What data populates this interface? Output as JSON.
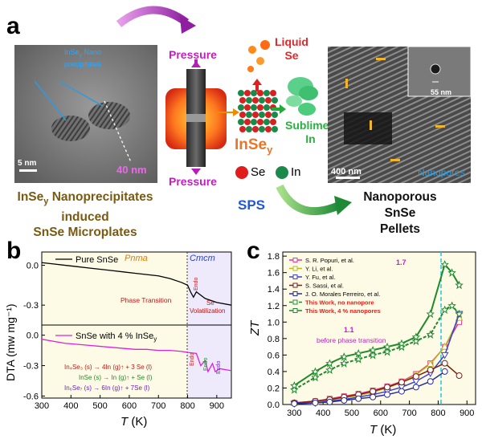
{
  "panel_a": {
    "label": "a",
    "tem": {
      "precip_label_line1": "InSe",
      "precip_label_sub": "y",
      "precip_label_rest": " Nano",
      "precip_label_line2": "precipitates",
      "scale_bar": "5 nm",
      "length_label": "40 nm"
    },
    "caption_left_line1a": "InSe",
    "caption_left_line1sub": "y",
    "caption_left_line1b": " Nanoprecipitates",
    "caption_left_line2": "induced",
    "caption_left_line3": "SnSe Microplates",
    "pressure_top": "Pressure",
    "pressure_bottom": "Pressure",
    "liquid_line1": "Liquid",
    "liquid_line2": "Se",
    "sublimed_line1": "Sublimed",
    "sublimed_line2": "In",
    "inse_main": "InSe",
    "inse_sub": "y",
    "legend_se": "Se",
    "legend_in": "In",
    "sps": "SPS",
    "sem": {
      "scale_bar": "400 nm",
      "inset_scale": "55 nm",
      "nanopores": "Nanopores"
    },
    "caption_right_line1": "Nanoporous",
    "caption_right_line2": "SnSe",
    "caption_right_line3": "Pellets"
  },
  "panel_b": {
    "label": "b",
    "phase_pnma": "Pnma",
    "phase_cmcm": "Cmcm",
    "phase_transition": "Phase Transition",
    "endo": "Endo",
    "se_vol_line1": "Se",
    "se_vol_line2": "Volatilization",
    "legend_top": "Pure SnSe",
    "legend_bottom_a": "SnSe with 4 % InSe",
    "legend_bottom_sub": "y",
    "reaction1": "In₄Se₃ (s) → 4In (g)↑ + 3 Se (l)",
    "reaction2": "InSe (s) → In (g)↑ + Se (l)",
    "reaction3": "In₆Se₇ (s) → 6In (g)↑ + 7Se (l)",
    "chart_data": {
      "type": "line",
      "xlabel": "T (K)",
      "ylabel": "DTA (mw mg⁻¹)",
      "xlim": [
        300,
        950
      ],
      "xticks": [
        "300",
        "400",
        "500",
        "600",
        "700",
        "800",
        "900"
      ],
      "top_yticks": [
        "0.0",
        "-0.3"
      ],
      "bottom_yticks": [
        "0.0",
        "-0.3",
        "-0.6"
      ],
      "series": [
        {
          "name": "Pure SnSe",
          "x": [
            300,
            340,
            380,
            420,
            460,
            500,
            540,
            580,
            620,
            660,
            700,
            740,
            780,
            800,
            810,
            820,
            830,
            860,
            900,
            950
          ],
          "y": [
            0.02,
            0.01,
            0.0,
            -0.01,
            -0.02,
            -0.03,
            -0.04,
            -0.05,
            -0.06,
            -0.07,
            -0.08,
            -0.1,
            -0.13,
            -0.15,
            -0.2,
            -0.24,
            -0.2,
            -0.25,
            -0.28,
            -0.3
          ]
        },
        {
          "name": "SnSe with 4 % InSe_y",
          "x": [
            300,
            340,
            380,
            420,
            460,
            500,
            540,
            580,
            620,
            660,
            700,
            740,
            780,
            800,
            830,
            845,
            860,
            870,
            885,
            895,
            910,
            950
          ],
          "y": [
            -0.04,
            -0.06,
            -0.08,
            -0.09,
            -0.1,
            -0.11,
            -0.12,
            -0.13,
            -0.14,
            -0.14,
            -0.15,
            -0.15,
            -0.16,
            -0.17,
            -0.18,
            -0.3,
            -0.25,
            -0.36,
            -0.28,
            -0.36,
            -0.33,
            -0.35
          ]
        }
      ]
    }
  },
  "panel_c": {
    "label": "c",
    "annot_17": "1.7",
    "annot_11": "1.1",
    "annot_before": "before phase transition",
    "chart_data": {
      "type": "line",
      "xlabel": "T (K)",
      "ylabel": "ZT",
      "xlim": [
        260,
        930
      ],
      "ylim": [
        0,
        1.85
      ],
      "xticks": [
        300,
        400,
        500,
        600,
        700,
        800,
        900
      ],
      "yticks": [
        "0.0",
        "0.2",
        "0.4",
        "0.6",
        "0.8",
        "1.0",
        "1.2",
        "1.4",
        "1.6",
        "1.8"
      ],
      "series": [
        {
          "name": "S. R. Popuri, et al.",
          "color": "#e8348a",
          "x": [
            300,
            373,
            423,
            473,
            523,
            573,
            623,
            673,
            723,
            773,
            823,
            873
          ],
          "y": [
            0.02,
            0.04,
            0.07,
            0.1,
            0.13,
            0.17,
            0.22,
            0.28,
            0.37,
            0.5,
            0.7,
            1.0
          ]
        },
        {
          "name": "Y. Li, et al.",
          "color": "#b9b81e",
          "x": [
            300,
            373,
            423,
            473,
            523,
            573,
            623,
            673,
            723,
            773,
            823,
            873
          ],
          "y": [
            0.02,
            0.03,
            0.05,
            0.08,
            0.11,
            0.15,
            0.2,
            0.27,
            0.36,
            0.49,
            0.7,
            1.05
          ]
        },
        {
          "name": "Y. Fu, et al.",
          "color": "#3a3fd0",
          "x": [
            300,
            373,
            423,
            473,
            523,
            573,
            623,
            673,
            723,
            773,
            823,
            873
          ],
          "y": [
            0.01,
            0.02,
            0.04,
            0.06,
            0.09,
            0.12,
            0.16,
            0.21,
            0.28,
            0.38,
            0.6,
            1.1
          ]
        },
        {
          "name": "S. Sassi, et al.",
          "color": "#7a2010",
          "x": [
            300,
            373,
            423,
            473,
            523,
            573,
            623,
            673,
            723,
            773,
            823,
            873
          ],
          "y": [
            0.02,
            0.04,
            0.06,
            0.09,
            0.12,
            0.16,
            0.21,
            0.27,
            0.34,
            0.42,
            0.5,
            0.35
          ]
        },
        {
          "name": "J. O. Morales Ferreiro, et al.",
          "color": "#2a2aa0",
          "x": [
            300,
            373,
            423,
            473,
            523,
            573,
            623,
            673,
            723,
            773,
            823
          ],
          "y": [
            0.01,
            0.02,
            0.03,
            0.05,
            0.07,
            0.09,
            0.12,
            0.16,
            0.21,
            0.28,
            0.4
          ]
        },
        {
          "name": "This Work, no nanopore",
          "color": "#1f8a2a",
          "x": [
            300,
            373,
            423,
            473,
            523,
            573,
            623,
            673,
            723,
            773,
            823,
            848,
            873
          ],
          "y": [
            0.18,
            0.33,
            0.42,
            0.5,
            0.55,
            0.6,
            0.64,
            0.7,
            0.77,
            0.85,
            1.15,
            1.2,
            1.1
          ]
        },
        {
          "name": "This Work, 4 % nanopores",
          "color": "#1f8a2a",
          "x": [
            300,
            373,
            423,
            473,
            523,
            573,
            623,
            673,
            723,
            773,
            823,
            848,
            873
          ],
          "y": [
            0.23,
            0.4,
            0.5,
            0.58,
            0.62,
            0.66,
            0.7,
            0.74,
            0.82,
            1.1,
            1.7,
            1.6,
            1.45
          ]
        }
      ]
    }
  }
}
